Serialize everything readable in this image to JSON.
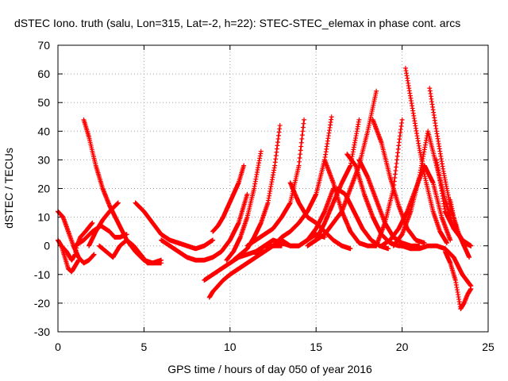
{
  "chart_data": {
    "type": "scatter",
    "title": "dSTEC Iono. truth (salu, Lon=315, Lat=-2, h=22): STEC-STEC_elemax in phase cont. arcs",
    "xlabel": "GPS time / hours of day 050 of year 2016",
    "ylabel": "dSTEC  / TECUs",
    "xlim": [
      0,
      25
    ],
    "ylim": [
      -30,
      70
    ],
    "x_ticks": [
      "0",
      "5",
      "10",
      "15",
      "20",
      "25"
    ],
    "y_ticks": [
      "-30",
      "-20",
      "-10",
      "0",
      "10",
      "20",
      "30",
      "40",
      "50",
      "60",
      "70"
    ],
    "grid": true,
    "legend": "none",
    "marker": "+",
    "color": "#ff0000",
    "series": [
      {
        "x": [
          0.0,
          0.3,
          0.6,
          0.9,
          1.2,
          1.5,
          1.8,
          2.1
        ],
        "y": [
          12,
          10,
          5,
          0,
          -4,
          -6,
          -5,
          -3
        ]
      },
      {
        "x": [
          0.0,
          0.2,
          0.4,
          0.6,
          0.8,
          1.0,
          1.2
        ],
        "y": [
          2,
          0,
          -4,
          -8,
          -9,
          -7,
          -5
        ]
      },
      {
        "x": [
          0.2,
          0.5,
          0.8,
          1.0,
          1.1,
          1.3,
          1.6,
          2.0
        ],
        "y": [
          0,
          -2,
          -5,
          -3,
          0,
          3,
          5,
          8
        ]
      },
      {
        "x": [
          1.0,
          1.5,
          2.0,
          2.5,
          3.0,
          3.3,
          3.6,
          4.0
        ],
        "y": [
          0,
          2,
          5,
          7,
          5,
          3,
          3,
          4
        ]
      },
      {
        "x": [
          1.5,
          1.8,
          2.2,
          2.6,
          3.0,
          3.5,
          4.0,
          4.5,
          5.0,
          5.5,
          6.0
        ],
        "y": [
          44,
          38,
          28,
          20,
          14,
          8,
          2,
          -2,
          -5,
          -6,
          -5
        ]
      },
      {
        "x": [
          1.8,
          2.2,
          2.6,
          3.0,
          3.5
        ],
        "y": [
          0,
          5,
          9,
          12,
          15
        ]
      },
      {
        "x": [
          2.4,
          2.8,
          3.2,
          3.6,
          4.0,
          4.4,
          4.8,
          5.2,
          5.6,
          6.0
        ],
        "y": [
          0,
          -2,
          -4,
          0,
          2,
          0,
          -3,
          -6,
          -6,
          -6
        ]
      },
      {
        "x": [
          4.5,
          5.0,
          5.5,
          6.0,
          6.5,
          7.0,
          7.5,
          8.0,
          8.5,
          9.0
        ],
        "y": [
          15,
          12,
          8,
          4,
          2,
          1,
          0,
          -1,
          0,
          2
        ]
      },
      {
        "x": [
          6.0,
          6.5,
          7.0,
          7.5,
          8.0,
          8.5,
          9.0,
          9.5,
          10.0,
          10.5,
          11.0
        ],
        "y": [
          2,
          0,
          -2,
          -4,
          -5,
          -5,
          -4,
          -2,
          2,
          8,
          18
        ]
      },
      {
        "x": [
          8.5,
          9.0,
          9.5,
          10.0,
          10.5,
          11.0,
          11.5,
          12.0,
          12.5,
          13.0
        ],
        "y": [
          -12,
          -10,
          -8,
          -6,
          -4,
          -3,
          -2,
          0,
          0,
          0
        ]
      },
      {
        "x": [
          8.8,
          9.0,
          9.3,
          9.6,
          10.0,
          10.5,
          11.0,
          11.5,
          12.0,
          12.5,
          13.0
        ],
        "y": [
          -18,
          -16,
          -14,
          -12,
          -10,
          -8,
          -6,
          -4,
          -2,
          0,
          1
        ]
      },
      {
        "x": [
          9.0,
          9.3,
          9.6,
          9.9,
          10.2,
          10.5,
          10.8
        ],
        "y": [
          5,
          7,
          10,
          14,
          18,
          22,
          28
        ]
      },
      {
        "x": [
          9.8,
          10.2,
          10.6,
          11.0,
          11.4,
          11.8
        ],
        "y": [
          -5,
          -2,
          3,
          10,
          20,
          33
        ]
      },
      {
        "x": [
          10.2,
          10.6,
          11.0,
          11.4,
          11.8,
          12.2,
          12.6,
          12.9
        ],
        "y": [
          -5,
          -3,
          -1,
          3,
          8,
          15,
          28,
          42
        ]
      },
      {
        "x": [
          11.0,
          11.5,
          12.0,
          12.5,
          13.0,
          13.5,
          14.0,
          14.3
        ],
        "y": [
          0,
          2,
          4,
          6,
          10,
          15,
          28,
          44
        ]
      },
      {
        "x": [
          11.5,
          12.0,
          12.5,
          13.0,
          13.5,
          14.0,
          14.5,
          15.0,
          15.5
        ],
        "y": [
          -3,
          0,
          2,
          1,
          0,
          0,
          2,
          4,
          3
        ]
      },
      {
        "x": [
          12.5,
          13.0,
          13.5,
          14.0,
          14.5,
          15.0,
          15.5,
          15.9
        ],
        "y": [
          0,
          3,
          5,
          8,
          12,
          18,
          30,
          45
        ]
      },
      {
        "x": [
          13.0,
          13.5,
          14.0,
          14.5,
          15.0,
          15.5,
          16.0
        ],
        "y": [
          2,
          0,
          0,
          2,
          6,
          12,
          20
        ]
      },
      {
        "x": [
          13.5,
          14.0,
          14.5,
          15.0,
          15.5,
          16.0,
          16.5,
          17.0
        ],
        "y": [
          22,
          15,
          10,
          8,
          5,
          2,
          0,
          -1
        ]
      },
      {
        "x": [
          14.5,
          15.0,
          15.5,
          16.0,
          16.5,
          17.0,
          17.5
        ],
        "y": [
          0,
          2,
          8,
          15,
          22,
          28,
          44
        ]
      },
      {
        "x": [
          15.0,
          15.5,
          16.0,
          16.5,
          17.0,
          17.5,
          18.0,
          18.5
        ],
        "y": [
          2,
          4,
          8,
          12,
          20,
          28,
          40,
          54
        ]
      },
      {
        "x": [
          15.5,
          16.0,
          16.5,
          17.0,
          17.5,
          18.0,
          18.5
        ],
        "y": [
          30,
          22,
          12,
          5,
          1,
          0,
          0
        ]
      },
      {
        "x": [
          16.2,
          16.7,
          17.2,
          17.7,
          18.2,
          18.7,
          19.2
        ],
        "y": [
          20,
          18,
          12,
          6,
          2,
          0,
          -1
        ]
      },
      {
        "x": [
          16.8,
          17.3,
          17.8,
          18.3,
          18.8,
          19.3,
          19.8,
          20.3
        ],
        "y": [
          32,
          28,
          18,
          10,
          4,
          1,
          0,
          0
        ]
      },
      {
        "x": [
          17.5,
          18.0,
          18.5,
          19.0,
          19.5,
          20.0,
          20.5,
          21.0
        ],
        "y": [
          30,
          24,
          16,
          8,
          3,
          1,
          0,
          0
        ]
      },
      {
        "x": [
          18.3,
          18.8,
          19.3,
          19.8,
          20.3,
          20.8,
          21.3
        ],
        "y": [
          44,
          36,
          24,
          14,
          6,
          2,
          1
        ]
      },
      {
        "x": [
          18.5,
          19.0,
          19.5,
          19.8,
          20.0
        ],
        "y": [
          0,
          8,
          20,
          35,
          44
        ]
      },
      {
        "x": [
          18.8,
          19.3,
          19.8,
          20.3,
          20.8,
          21.3,
          21.8,
          22.3,
          22.8
        ],
        "y": [
          0,
          2,
          6,
          12,
          20,
          28,
          22,
          10,
          2
        ]
      },
      {
        "x": [
          20.2,
          20.6,
          21.0,
          21.4,
          21.8,
          22.2,
          22.6
        ],
        "y": [
          62,
          48,
          34,
          22,
          12,
          5,
          1
        ]
      },
      {
        "x": [
          19.5,
          20.0,
          20.5,
          21.0,
          21.5,
          22.0,
          22.5,
          23.0
        ],
        "y": [
          0,
          4,
          12,
          24,
          40,
          28,
          16,
          6
        ]
      },
      {
        "x": [
          21.6,
          22.0,
          22.4,
          22.8,
          23.2,
          23.6,
          24.0
        ],
        "y": [
          55,
          40,
          26,
          14,
          5,
          1,
          0
        ]
      },
      {
        "x": [
          20.0,
          20.5,
          21.0,
          21.5,
          22.0,
          22.5,
          23.0,
          23.5,
          24.0
        ],
        "y": [
          0,
          -1,
          -1,
          0,
          0,
          -1,
          -4,
          -10,
          -14
        ]
      },
      {
        "x": [
          22.5,
          22.8,
          23.1,
          23.4,
          23.6,
          23.8,
          24.0
        ],
        "y": [
          -2,
          -6,
          -12,
          -22,
          -20,
          -17,
          -15
        ]
      },
      {
        "x": [
          22.8,
          23.0,
          23.3,
          23.6,
          23.9
        ],
        "y": [
          16,
          10,
          4,
          0,
          -4
        ]
      },
      {
        "x": [
          22.0,
          22.5,
          23.0,
          23.5,
          24.0
        ],
        "y": [
          30,
          12,
          6,
          2,
          0
        ]
      }
    ]
  }
}
